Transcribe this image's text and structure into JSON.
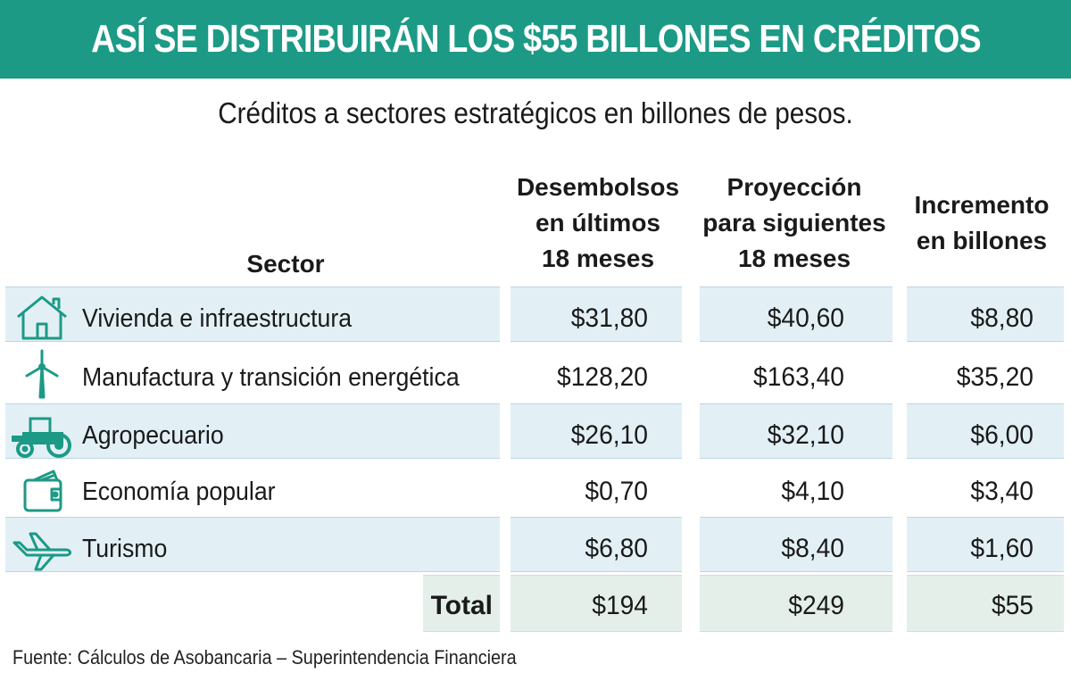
{
  "title": "ASÍ SE DISTRIBUIRÁN LOS $55 BILLONES EN CRÉDITOS",
  "subtitle": "Créditos a sectores estratégicos en billones de pesos.",
  "source": "Fuente: Cálculos de Asobancaria – Superintendencia Financiera",
  "colors": {
    "banner": "#1c9a86",
    "row_band": "#e2f0f6",
    "total_band": "#e4efea",
    "icon": "#1c9a86"
  },
  "chart_data": {
    "type": "table",
    "title": "ASÍ SE DISTRIBUIRÁN LOS $55 BILLONES EN CRÉDITOS",
    "subtitle": "Créditos a sectores estratégicos en billones de pesos.",
    "columns": [
      "Sector",
      "Desembolsos\nen últimos\n18 meses",
      "Proyección\npara siguientes\n18 meses",
      "Incremento\nen billones"
    ],
    "rows": [
      {
        "icon": "house-icon",
        "sector": "Vivienda e infraestructura",
        "desembolsos": "$31,80",
        "proyeccion": "$40,60",
        "incremento": "$8,80"
      },
      {
        "icon": "wind-turbine-icon",
        "sector": "Manufactura y transición energética",
        "desembolsos": "$128,20",
        "proyeccion": "$163,40",
        "incremento": "$35,20"
      },
      {
        "icon": "tractor-icon",
        "sector": "Agropecuario",
        "desembolsos": "$26,10",
        "proyeccion": "$32,10",
        "incremento": "$6,00"
      },
      {
        "icon": "wallet-icon",
        "sector": "Economía popular",
        "desembolsos": "$0,70",
        "proyeccion": "$4,10",
        "incremento": "$3,40"
      },
      {
        "icon": "airplane-icon",
        "sector": "Turismo",
        "desembolsos": "$6,80",
        "proyeccion": "$8,40",
        "incremento": "$1,60"
      }
    ],
    "total": {
      "label": "Total",
      "desembolsos": "$194",
      "proyeccion": "$249",
      "incremento": "$55"
    }
  }
}
